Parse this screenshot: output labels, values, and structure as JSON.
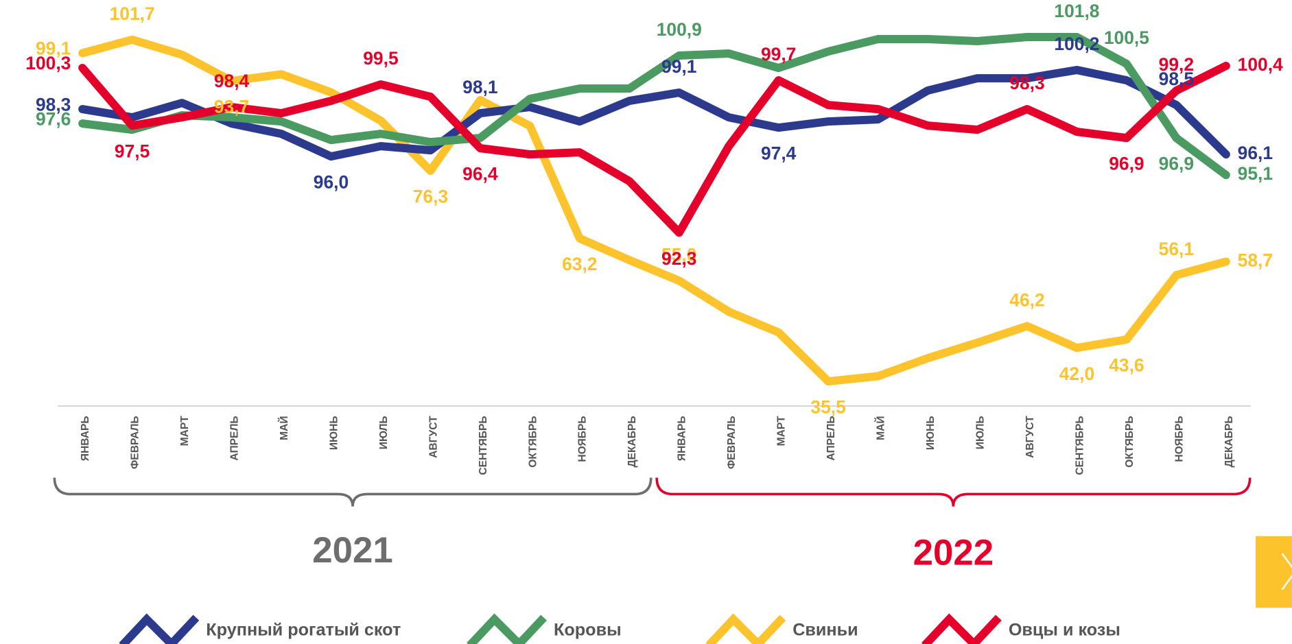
{
  "chart_data": {
    "type": "line",
    "categories": [
      "ЯНВАРЬ",
      "ФЕВРАЛЬ",
      "МАРТ",
      "АПРЕЛЬ",
      "МАЙ",
      "ИЮНЬ",
      "ИЮЛЬ",
      "АВГУСТ",
      "СЕНТЯБРЬ",
      "ОКТЯБРЬ",
      "НОЯБРЬ",
      "ДЕКАБРЬ",
      "ЯНВАРЬ",
      "ФЕВРАЛЬ",
      "МАРТ",
      "АПРЕЛЬ",
      "МАЙ",
      "ИЮНЬ",
      "ИЮЛЬ",
      "АВГУСТ",
      "СЕНТЯБРЬ",
      "ОКТЯБРЬ",
      "НОЯБРЬ",
      "ДЕКАБРЬ"
    ],
    "year_labels": [
      "2021",
      "2022"
    ],
    "ylim": [
      84.8,
      102.8
    ],
    "y2lim": [
      34.4,
      106.2
    ],
    "series": [
      {
        "name": "Крупный рогатый скот",
        "color": "#2b3a8c",
        "values": [
          98.3,
          97.9,
          98.6,
          97.6,
          97.1,
          96.0,
          96.5,
          96.3,
          98.1,
          98.4,
          97.7,
          98.7,
          99.1,
          97.9,
          97.4,
          97.7,
          97.8,
          99.2,
          99.8,
          99.8,
          100.2,
          99.7,
          98.5,
          96.1
        ],
        "value_labels": [
          "98,3",
          null,
          null,
          null,
          null,
          "96,0",
          null,
          null,
          "98,1",
          null,
          null,
          null,
          "99,1",
          null,
          "97,4",
          null,
          null,
          null,
          null,
          null,
          "100,2",
          null,
          "98,5",
          "96,1"
        ]
      },
      {
        "name": "Коровы",
        "color": "#4a9a62",
        "values": [
          97.6,
          97.3,
          98.0,
          97.9,
          97.7,
          96.8,
          97.1,
          96.7,
          96.9,
          98.8,
          99.3,
          99.3,
          100.9,
          101.0,
          100.3,
          101.1,
          101.7,
          101.7,
          101.6,
          101.8,
          101.8,
          100.5,
          96.9,
          95.1
        ],
        "value_labels": [
          "97,6",
          null,
          null,
          null,
          null,
          null,
          null,
          null,
          null,
          null,
          null,
          null,
          "100,9",
          null,
          null,
          null,
          null,
          null,
          null,
          null,
          "101,8",
          "100,5",
          "96,9",
          "95,1"
        ]
      },
      {
        "name": "Свиньи",
        "color": "#fcc32d",
        "axis": "y2",
        "values": [
          99.1,
          101.7,
          98.8,
          93.7,
          95.0,
          91.5,
          86.0,
          76.3,
          90.0,
          85.0,
          63.2,
          59.0,
          55.0,
          49.0,
          45.0,
          35.5,
          36.5,
          40.0,
          43.0,
          46.2,
          42.0,
          43.6,
          56.1,
          58.7
        ],
        "value_labels": [
          "99,1",
          "101,7",
          null,
          "93,7",
          null,
          null,
          null,
          "76,3",
          null,
          null,
          "63,2",
          null,
          "55,0",
          null,
          null,
          "35,5",
          null,
          null,
          null,
          "46,2",
          "42,0",
          "43,6",
          "56,1",
          "58,7"
        ]
      },
      {
        "name": "Овцы и козы",
        "color": "#e4002b",
        "values": [
          100.3,
          97.5,
          97.9,
          98.4,
          98.1,
          98.7,
          99.5,
          98.9,
          96.4,
          96.1,
          96.2,
          94.8,
          92.3,
          96.5,
          99.7,
          98.5,
          98.3,
          97.5,
          97.3,
          98.3,
          97.2,
          96.9,
          99.2,
          100.4
        ],
        "value_labels": [
          "100,3",
          "97,5",
          null,
          "98,4",
          null,
          null,
          "99,5",
          null,
          "96,4",
          null,
          null,
          null,
          "92,3",
          null,
          "99,7",
          null,
          null,
          null,
          null,
          "98,3",
          null,
          "96,9",
          "99,2",
          "100,4"
        ]
      }
    ]
  }
}
